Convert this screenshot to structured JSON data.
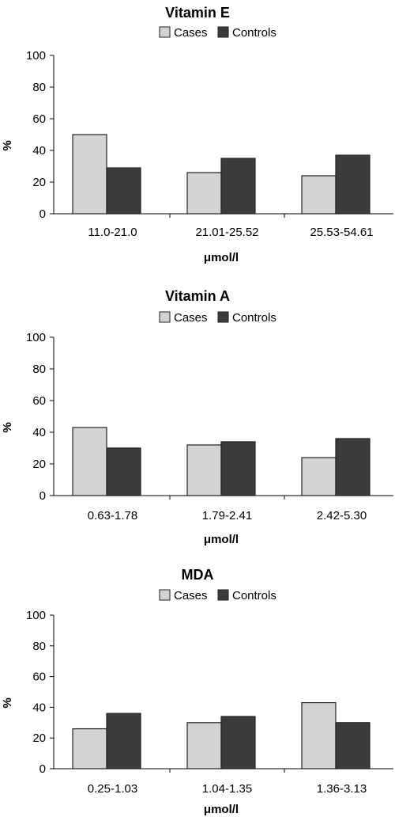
{
  "chart_data": [
    {
      "type": "bar",
      "title": "Vitamin E",
      "xlabel": "μmol/l",
      "ylabel": "%",
      "ylim": [
        0,
        100
      ],
      "yticks": [
        0,
        20,
        40,
        60,
        80,
        100
      ],
      "categories": [
        "11.0-21.0",
        "21.01-25.52",
        "25.53-54.61"
      ],
      "series": [
        {
          "name": "Cases",
          "values": [
            50,
            26,
            24
          ],
          "color": "#d3d3d3"
        },
        {
          "name": "Controls",
          "values": [
            29,
            35,
            37
          ],
          "color": "#3c3c3c"
        }
      ],
      "legend": "top-center",
      "grid": false
    },
    {
      "type": "bar",
      "title": "Vitamin A",
      "xlabel": "μmol/l",
      "ylabel": "%",
      "ylim": [
        0,
        100
      ],
      "yticks": [
        0,
        20,
        40,
        60,
        80,
        100
      ],
      "categories": [
        "0.63-1.78",
        "1.79-2.41",
        "2.42-5.30"
      ],
      "series": [
        {
          "name": "Cases",
          "values": [
            43,
            32,
            24
          ],
          "color": "#d3d3d3"
        },
        {
          "name": "Controls",
          "values": [
            30,
            34,
            36
          ],
          "color": "#3c3c3c"
        }
      ],
      "legend": "top-center",
      "grid": false
    },
    {
      "type": "bar",
      "title": "MDA",
      "xlabel": "μmol/l",
      "ylabel": "%",
      "ylim": [
        0,
        100
      ],
      "yticks": [
        0,
        20,
        40,
        60,
        80,
        100
      ],
      "categories": [
        "0.25-1.03",
        "1.04-1.35",
        "1.36-3.13"
      ],
      "series": [
        {
          "name": "Cases",
          "values": [
            26,
            30,
            43
          ],
          "color": "#d3d3d3"
        },
        {
          "name": "Controls",
          "values": [
            36,
            34,
            30
          ],
          "color": "#3c3c3c"
        }
      ],
      "legend": "top-center",
      "grid": false
    }
  ]
}
